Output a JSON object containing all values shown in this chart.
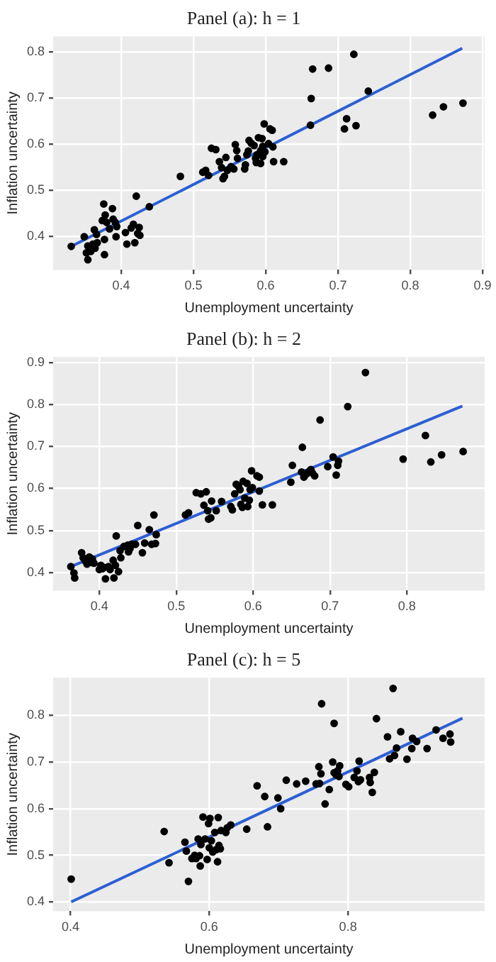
{
  "chart_data": [
    {
      "type": "scatter",
      "title": "Panel (a): h = 1",
      "xlabel": "Unemployment uncertainty",
      "ylabel": "Inflation uncertainty",
      "xlim": [
        0.306,
        0.903
      ],
      "ylim": [
        0.327,
        0.834
      ],
      "xticks": [
        0.4,
        0.5,
        0.6,
        0.7,
        0.8,
        0.9
      ],
      "yticks": [
        0.4,
        0.5,
        0.6,
        0.7,
        0.8
      ],
      "grid": true,
      "marker": "circle",
      "series": [
        {
          "color": "#000000",
          "x": [
            0.331,
            0.349,
            0.354,
            0.354,
            0.352,
            0.358,
            0.361,
            0.363,
            0.364,
            0.367,
            0.366,
            0.376,
            0.378,
            0.374,
            0.38,
            0.384,
            0.388,
            0.389,
            0.392,
            0.394,
            0.393,
            0.377,
            0.377,
            0.408,
            0.406,
            0.414,
            0.417,
            0.419,
            0.421,
            0.423,
            0.425,
            0.426,
            0.439,
            0.482,
            0.513,
            0.517,
            0.521,
            0.525,
            0.531,
            0.536,
            0.539,
            0.541,
            0.543,
            0.545,
            0.547,
            0.552,
            0.556,
            0.558,
            0.56,
            0.561,
            0.571,
            0.572,
            0.574,
            0.576,
            0.577,
            0.58,
            0.584,
            0.586,
            0.587,
            0.588,
            0.59,
            0.593,
            0.595,
            0.596,
            0.598,
            0.596,
            0.593,
            0.599,
            0.604,
            0.606,
            0.609,
            0.61,
            0.611,
            0.625,
            0.662,
            0.663,
            0.665,
            0.687,
            0.722,
            0.742,
            0.709,
            0.712,
            0.725,
            0.831,
            0.846,
            0.873
          ],
          "values": [
            0.378,
            0.399,
            0.379,
            0.349,
            0.364,
            0.367,
            0.383,
            0.414,
            0.374,
            0.386,
            0.404,
            0.47,
            0.446,
            0.434,
            0.43,
            0.416,
            0.46,
            0.437,
            0.43,
            0.421,
            0.399,
            0.393,
            0.36,
            0.383,
            0.408,
            0.418,
            0.426,
            0.386,
            0.487,
            0.406,
            0.419,
            0.402,
            0.464,
            0.53,
            0.539,
            0.543,
            0.532,
            0.591,
            0.588,
            0.562,
            0.549,
            0.525,
            0.53,
            0.571,
            0.543,
            0.551,
            0.546,
            0.599,
            0.586,
            0.569,
            0.546,
            0.555,
            0.577,
            0.585,
            0.608,
            0.602,
            0.597,
            0.569,
            0.56,
            0.577,
            0.614,
            0.586,
            0.612,
            0.595,
            0.644,
            0.573,
            0.558,
            0.583,
            0.601,
            0.633,
            0.63,
            0.594,
            0.562,
            0.562,
            0.641,
            0.699,
            0.763,
            0.765,
            0.795,
            0.715,
            0.633,
            0.655,
            0.64,
            0.663,
            0.681,
            0.689
          ]
        },
        {
          "type": "line",
          "marker": "none",
          "color": "#2c5fd4",
          "x": [
            0.331,
            0.872
          ],
          "values": [
            0.378,
            0.808
          ]
        }
      ]
    },
    {
      "type": "scatter",
      "title": "Panel (b): h = 2",
      "xlabel": "Unemployment uncertainty",
      "ylabel": "Inflation uncertainty",
      "xlim": [
        0.34,
        0.901
      ],
      "ylim": [
        0.357,
        0.913
      ],
      "xticks": [
        0.4,
        0.5,
        0.6,
        0.7,
        0.8
      ],
      "yticks": [
        0.4,
        0.5,
        0.6,
        0.7,
        0.8,
        0.9
      ],
      "grid": true,
      "marker": "circle",
      "series": [
        {
          "color": "#000000",
          "x": [
            0.363,
            0.367,
            0.368,
            0.377,
            0.379,
            0.382,
            0.384,
            0.387,
            0.389,
            0.391,
            0.393,
            0.4,
            0.402,
            0.404,
            0.406,
            0.408,
            0.412,
            0.414,
            0.418,
            0.419,
            0.421,
            0.422,
            0.425,
            0.427,
            0.428,
            0.432,
            0.437,
            0.438,
            0.44,
            0.442,
            0.447,
            0.45,
            0.456,
            0.459,
            0.465,
            0.468,
            0.471,
            0.473,
            0.474,
            0.512,
            0.516,
            0.526,
            0.532,
            0.536,
            0.539,
            0.541,
            0.542,
            0.545,
            0.546,
            0.552,
            0.559,
            0.571,
            0.573,
            0.576,
            0.578,
            0.581,
            0.583,
            0.584,
            0.586,
            0.587,
            0.589,
            0.592,
            0.593,
            0.595,
            0.596,
            0.598,
            0.599,
            0.605,
            0.608,
            0.608,
            0.612,
            0.625,
            0.649,
            0.651,
            0.663,
            0.664,
            0.666,
            0.669,
            0.672,
            0.675,
            0.677,
            0.68,
            0.687,
            0.697,
            0.704,
            0.708,
            0.711,
            0.71,
            0.723,
            0.746,
            0.795,
            0.824,
            0.831,
            0.845,
            0.873
          ],
          "values": [
            0.414,
            0.399,
            0.387,
            0.447,
            0.435,
            0.427,
            0.42,
            0.437,
            0.424,
            0.432,
            0.422,
            0.407,
            0.417,
            0.409,
            0.412,
            0.385,
            0.414,
            0.407,
            0.429,
            0.387,
            0.417,
            0.487,
            0.402,
            0.452,
            0.435,
            0.462,
            0.465,
            0.449,
            0.457,
            0.467,
            0.467,
            0.512,
            0.447,
            0.47,
            0.502,
            0.467,
            0.537,
            0.469,
            0.49,
            0.537,
            0.542,
            0.59,
            0.587,
            0.56,
            0.592,
            0.547,
            0.527,
            0.53,
            0.57,
            0.547,
            0.569,
            0.557,
            0.549,
            0.587,
            0.61,
            0.605,
            0.597,
            0.562,
            0.555,
            0.617,
            0.577,
            0.612,
            0.557,
            0.572,
            0.597,
            0.642,
            0.602,
            0.63,
            0.627,
            0.594,
            0.561,
            0.561,
            0.615,
            0.655,
            0.639,
            0.698,
            0.627,
            0.634,
            0.639,
            0.645,
            0.637,
            0.63,
            0.763,
            0.652,
            0.675,
            0.632,
            0.665,
            0.655,
            0.795,
            0.876,
            0.67,
            0.726,
            0.663,
            0.68,
            0.688
          ]
        },
        {
          "type": "line",
          "marker": "none",
          "color": "#2c5fd4",
          "x": [
            0.363,
            0.872
          ],
          "values": [
            0.414,
            0.796
          ]
        }
      ]
    },
    {
      "type": "scatter",
      "title": "Panel (c): h = 5",
      "xlabel": "Unemployment uncertainty",
      "ylabel": "Inflation uncertainty",
      "xlim": [
        0.375,
        0.997
      ],
      "ylim": [
        0.38,
        0.881
      ],
      "xticks": [
        0.4,
        0.6,
        0.8
      ],
      "yticks": [
        0.4,
        0.5,
        0.6,
        0.7,
        0.8
      ],
      "grid": true,
      "marker": "circle",
      "series": [
        {
          "color": "#000000",
          "x": [
            0.401,
            0.535,
            0.542,
            0.565,
            0.567,
            0.57,
            0.575,
            0.579,
            0.581,
            0.584,
            0.586,
            0.587,
            0.588,
            0.591,
            0.594,
            0.597,
            0.599,
            0.6,
            0.601,
            0.603,
            0.605,
            0.608,
            0.61,
            0.612,
            0.613,
            0.614,
            0.616,
            0.617,
            0.624,
            0.626,
            0.631,
            0.654,
            0.669,
            0.68,
            0.684,
            0.699,
            0.703,
            0.711,
            0.726,
            0.739,
            0.754,
            0.758,
            0.759,
            0.762,
            0.761,
            0.767,
            0.773,
            0.778,
            0.78,
            0.78,
            0.783,
            0.785,
            0.788,
            0.787,
            0.797,
            0.801,
            0.809,
            0.813,
            0.815,
            0.816,
            0.818,
            0.831,
            0.832,
            0.835,
            0.838,
            0.841,
            0.857,
            0.86,
            0.865,
            0.867,
            0.87,
            0.876,
            0.885,
            0.892,
            0.893,
            0.899,
            0.914,
            0.927,
            0.937,
            0.947,
            0.948
          ],
          "values": [
            0.449,
            0.551,
            0.484,
            0.528,
            0.509,
            0.444,
            0.493,
            0.5,
            0.493,
            0.535,
            0.499,
            0.477,
            0.523,
            0.582,
            0.535,
            0.491,
            0.568,
            0.516,
            0.579,
            0.531,
            0.507,
            0.549,
            0.512,
            0.486,
            0.581,
            0.521,
            0.514,
            0.553,
            0.549,
            0.559,
            0.565,
            0.556,
            0.649,
            0.626,
            0.561,
            0.623,
            0.6,
            0.661,
            0.653,
            0.659,
            0.653,
            0.69,
            0.654,
            0.825,
            0.675,
            0.61,
            0.641,
            0.7,
            0.783,
            0.677,
            0.672,
            0.681,
            0.692,
            0.669,
            0.652,
            0.647,
            0.667,
            0.681,
            0.658,
            0.702,
            0.662,
            0.667,
            0.656,
            0.635,
            0.678,
            0.793,
            0.754,
            0.707,
            0.858,
            0.714,
            0.73,
            0.765,
            0.706,
            0.729,
            0.751,
            0.744,
            0.729,
            0.769,
            0.751,
            0.76,
            0.743
          ]
        },
        {
          "type": "line",
          "marker": "none",
          "color": "#2c5fd4",
          "x": [
            0.401,
            0.965
          ],
          "values": [
            0.4,
            0.794
          ]
        }
      ]
    }
  ]
}
